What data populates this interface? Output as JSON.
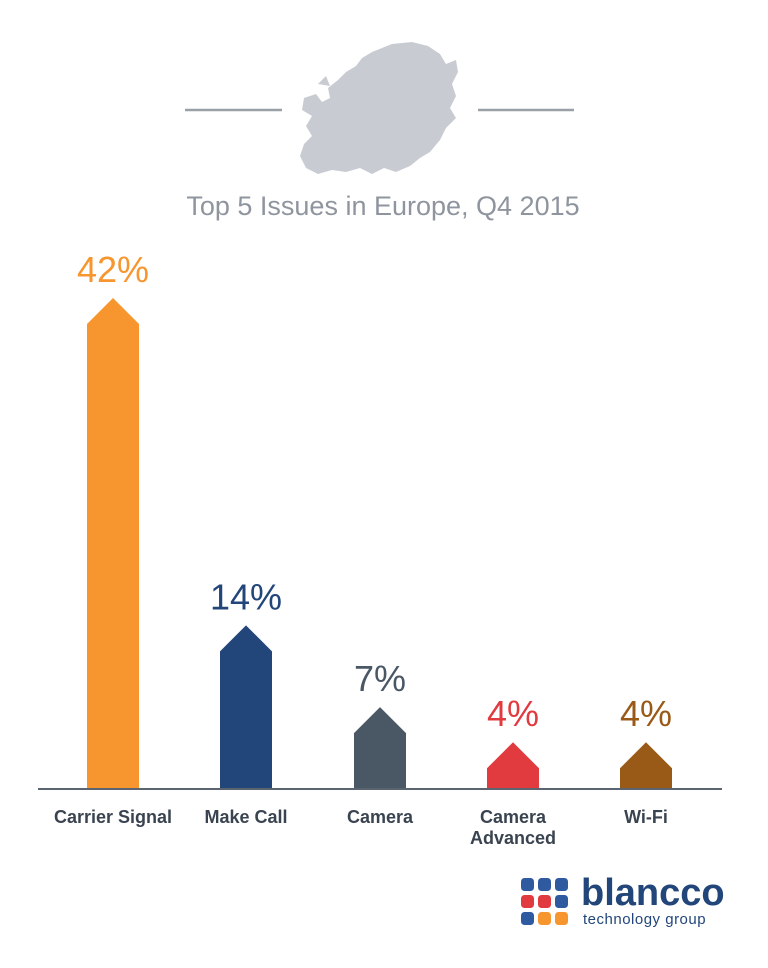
{
  "chart_data": {
    "type": "bar",
    "title": "Top 5 Issues in Europe, Q4 2015",
    "categories": [
      "Carrier Signal",
      "Make Call",
      "Camera",
      "Camera Advanced",
      "Wi-Fi"
    ],
    "category_lines": [
      [
        "Carrier Signal"
      ],
      [
        "Make Call"
      ],
      [
        "Camera"
      ],
      [
        "Camera",
        "Advanced"
      ],
      [
        "Wi-Fi"
      ]
    ],
    "values": [
      42,
      14,
      7,
      4,
      4
    ],
    "value_labels": [
      "42%",
      "14%",
      "7%",
      "4%",
      "4%"
    ],
    "colors": [
      "#f7952f",
      "#22467a",
      "#4a5866",
      "#e23b3f",
      "#9a5a17"
    ],
    "label_colors": [
      "#f7952f",
      "#22467a",
      "#4a5866",
      "#e23b3f",
      "#9a5a17"
    ],
    "xlabel": "",
    "ylabel": "",
    "grid": false,
    "legend": "none"
  },
  "colors": {
    "title": "#8f959e",
    "map": "#c8ccd2",
    "axis": "#5b6470",
    "category_text": "#3a4450"
  },
  "header": {
    "map_icon": "europe-map-icon"
  },
  "brand": {
    "name": "blancco",
    "tagline": "technology group",
    "logo_icon": "blancco-dots-logo",
    "name_color": "#23467a",
    "tagline_color": "#23467a",
    "dot_colors": [
      "#2f5aa0",
      "#2f5aa0",
      "#2f5aa0",
      "#e23b3f",
      "#e23b3f",
      "#2f5aa0",
      "#2f5aa0",
      "#f7952f",
      "#f7952f"
    ]
  }
}
